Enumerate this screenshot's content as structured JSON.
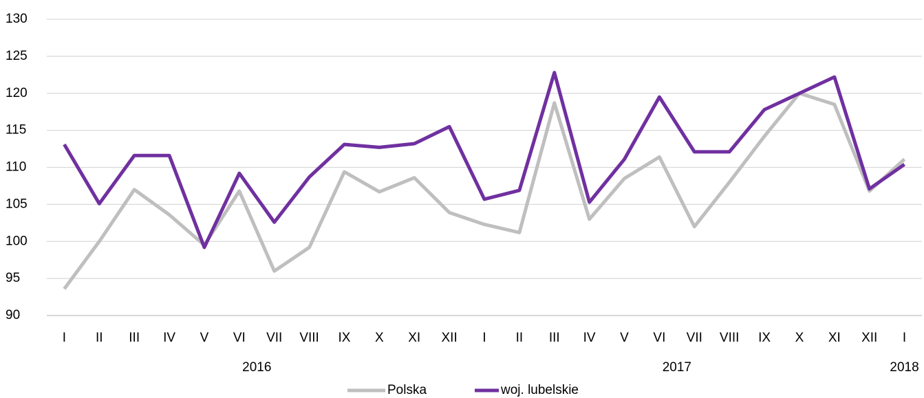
{
  "chart_data": {
    "type": "line",
    "categories": [
      "I",
      "II",
      "III",
      "IV",
      "V",
      "VI",
      "VII",
      "VIII",
      "IX",
      "X",
      "XI",
      "XII",
      "I",
      "II",
      "III",
      "IV",
      "V",
      "VI",
      "VII",
      "VIII",
      "IX",
      "X",
      "XI",
      "XII",
      "I"
    ],
    "x_groups": [
      {
        "label": "2016",
        "count": 12
      },
      {
        "label": "2017",
        "count": 12
      },
      {
        "label": "2018",
        "count": 1
      }
    ],
    "series": [
      {
        "name": "Polska",
        "color": "#bfbfbf",
        "values": [
          93.6,
          100,
          107,
          103.6,
          99.5,
          106.8,
          96,
          99.2,
          109.4,
          106.7,
          108.6,
          103.9,
          102.3,
          101.2,
          118.7,
          103,
          108.5,
          111.4,
          102,
          108,
          114.2,
          120,
          118.5,
          106.8,
          111.1
        ]
      },
      {
        "name": "woj. lubelskie",
        "color": "#7030a0",
        "values": [
          113.1,
          105.1,
          111.6,
          111.6,
          99.2,
          109.2,
          102.6,
          108.7,
          113.1,
          112.7,
          113.2,
          115.5,
          105.7,
          106.9,
          122.8,
          105.3,
          111.1,
          119.5,
          112.1,
          112.1,
          117.8,
          120,
          122.2,
          107.1,
          110.4
        ]
      }
    ],
    "ylim": [
      90,
      130
    ],
    "yticks": [
      90,
      95,
      100,
      105,
      110,
      115,
      120,
      125,
      130
    ],
    "grid": true,
    "legend": "bottom"
  }
}
